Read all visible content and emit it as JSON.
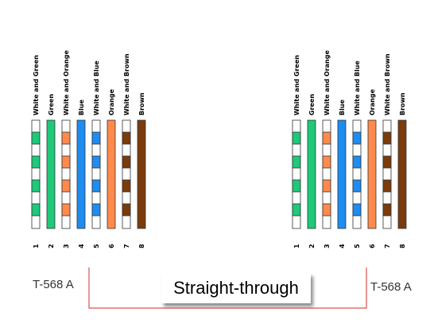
{
  "standards": {
    "left": "T-568 A",
    "right": "T-568 A"
  },
  "connection_type": "Straight-through",
  "wires": [
    {
      "pin": "1",
      "label": "White and Green",
      "color": "#1ec97a",
      "striped": true
    },
    {
      "pin": "2",
      "label": "Green",
      "color": "#1ec97a",
      "striped": false
    },
    {
      "pin": "3",
      "label": "White and Orange",
      "color": "#ff8a4c",
      "striped": true
    },
    {
      "pin": "4",
      "label": "Blue",
      "color": "#1e8cf0",
      "striped": false
    },
    {
      "pin": "5",
      "label": "White and Blue",
      "color": "#1e8cf0",
      "striped": true
    },
    {
      "pin": "6",
      "label": "Orange",
      "color": "#ff8a4c",
      "striped": false
    },
    {
      "pin": "7",
      "label": "White and Brown",
      "color": "#7a3c0c",
      "striped": true
    },
    {
      "pin": "8",
      "label": "Brown",
      "color": "#7a3c0c",
      "striped": false
    }
  ],
  "colors": {
    "connector_line": "#e05050",
    "outline": "#333333"
  }
}
